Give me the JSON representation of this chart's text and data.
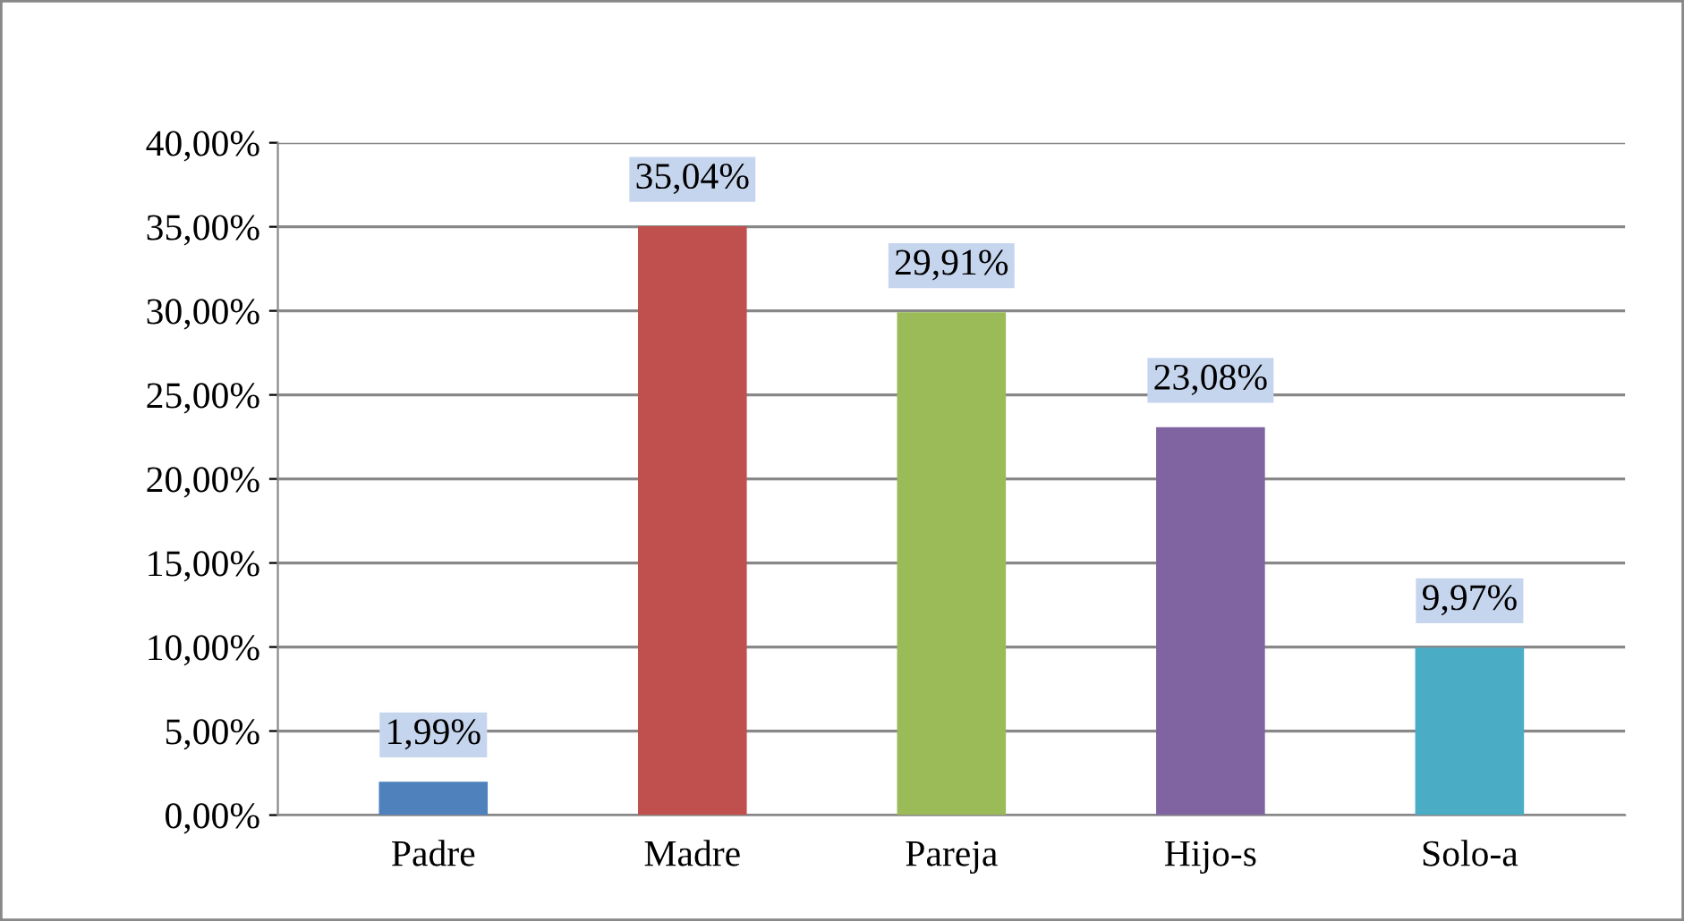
{
  "chart_data": {
    "type": "bar",
    "categories": [
      "Padre",
      "Madre",
      "Pareja",
      "Hijo-s",
      "Solo-a"
    ],
    "values": [
      1.99,
      35.04,
      29.91,
      23.08,
      9.97
    ],
    "colors": [
      "#4f81bd",
      "#c0504d",
      "#9bbb59",
      "#8064a2",
      "#4bacc6"
    ],
    "value_labels": [
      "1,99%",
      "35,04%",
      "29,91%",
      "23,08%",
      "9,97%"
    ],
    "ylim": [
      0,
      40
    ],
    "yticks": [
      {
        "value": 0,
        "label": "0,00%"
      },
      {
        "value": 5,
        "label": "5,00%"
      },
      {
        "value": 10,
        "label": "10,00%"
      },
      {
        "value": 15,
        "label": "15,00%"
      },
      {
        "value": 20,
        "label": "20,00%"
      },
      {
        "value": 25,
        "label": "25,00%"
      },
      {
        "value": 30,
        "label": "30,00%"
      },
      {
        "value": 35,
        "label": "35,00%"
      },
      {
        "value": 40,
        "label": "40,00%"
      }
    ],
    "grid": "y"
  }
}
